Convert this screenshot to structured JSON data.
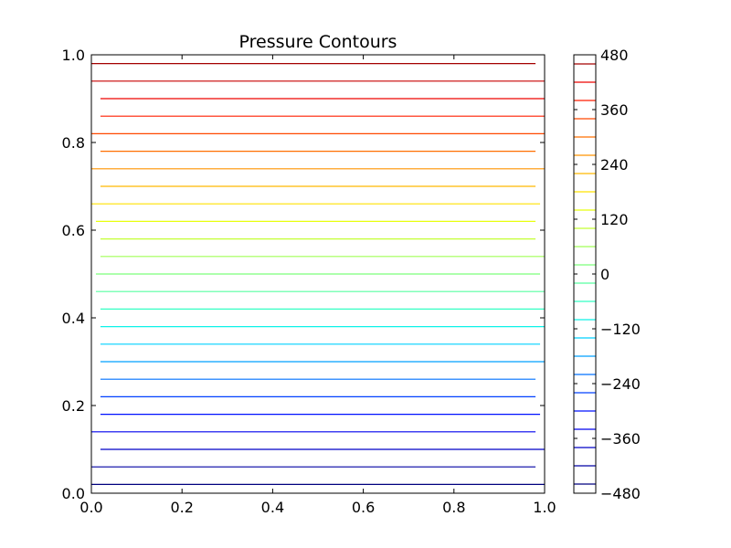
{
  "chart_data": {
    "type": "contour",
    "title": "Pressure Contours",
    "xlabel": "",
    "ylabel": "",
    "xlim": [
      0.0,
      1.0
    ],
    "ylim": [
      0.0,
      1.0
    ],
    "x_ticks": [
      "0.0",
      "0.2",
      "0.4",
      "0.6",
      "0.8",
      "1.0"
    ],
    "y_ticks": [
      "0.0",
      "0.2",
      "0.4",
      "0.6",
      "0.8",
      "1.0"
    ],
    "grid": false,
    "contour_orientation": "horizontal",
    "colormap": "jet",
    "levels": [
      {
        "value": -456,
        "y": 0.02,
        "x_extent": [
          0.0,
          1.0
        ],
        "color": "#00007f"
      },
      {
        "value": -432,
        "y": 0.06,
        "x_extent": [
          0.0,
          0.98
        ],
        "color": "#0000a4"
      },
      {
        "value": -408,
        "y": 0.1,
        "x_extent": [
          0.02,
          1.0
        ],
        "color": "#0000c8"
      },
      {
        "value": -384,
        "y": 0.14,
        "x_extent": [
          0.0,
          0.98
        ],
        "color": "#0000ed"
      },
      {
        "value": -360,
        "y": 0.18,
        "x_extent": [
          0.02,
          0.99
        ],
        "color": "#0010ff"
      },
      {
        "value": -336,
        "y": 0.22,
        "x_extent": [
          0.02,
          0.98
        ],
        "color": "#0040ff"
      },
      {
        "value": -312,
        "y": 0.26,
        "x_extent": [
          0.02,
          0.98
        ],
        "color": "#0070ff"
      },
      {
        "value": -288,
        "y": 0.3,
        "x_extent": [
          0.02,
          1.0
        ],
        "color": "#00a0ff"
      },
      {
        "value": -264,
        "y": 0.34,
        "x_extent": [
          0.02,
          0.99
        ],
        "color": "#00d0ff"
      },
      {
        "value": -240,
        "y": 0.38,
        "x_extent": [
          0.02,
          1.0
        ],
        "color": "#0ff2e8"
      },
      {
        "value": -216,
        "y": 0.42,
        "x_extent": [
          0.02,
          1.0
        ],
        "color": "#33ffc4"
      },
      {
        "value": -192,
        "y": 0.46,
        "x_extent": [
          0.01,
          1.0
        ],
        "color": "#57ffa0"
      },
      {
        "value": -168,
        "y": 0.5,
        "x_extent": [
          0.01,
          0.99
        ],
        "color": "#7cff7a"
      },
      {
        "value": -144,
        "y": 0.54,
        "x_extent": [
          0.02,
          1.0
        ],
        "color": "#a0ff57"
      },
      {
        "value": -120,
        "y": 0.58,
        "x_extent": [
          0.02,
          0.98
        ],
        "color": "#c4ff33"
      },
      {
        "value": -96,
        "y": 0.62,
        "x_extent": [
          0.01,
          0.98
        ],
        "color": "#e8ff0f"
      },
      {
        "value": -72,
        "y": 0.66,
        "x_extent": [
          0.0,
          0.99
        ],
        "color": "#ffe200"
      },
      {
        "value": -48,
        "y": 0.7,
        "x_extent": [
          0.02,
          0.98
        ],
        "color": "#ffb900"
      },
      {
        "value": -24,
        "y": 0.74,
        "x_extent": [
          0.0,
          1.0
        ],
        "color": "#ff9400"
      },
      {
        "value": 0,
        "y": 0.78,
        "x_extent": [
          0.02,
          0.98
        ],
        "color": "#ff6f00"
      },
      {
        "value": 24,
        "y": 0.82,
        "x_extent": [
          0.0,
          1.0
        ],
        "color": "#ff4800"
      },
      {
        "value": 48,
        "y": 0.86,
        "x_extent": [
          0.02,
          1.0
        ],
        "color": "#ff1f00"
      },
      {
        "value": 72,
        "y": 0.9,
        "x_extent": [
          0.02,
          1.0
        ],
        "color": "#ed0400"
      },
      {
        "value": 96,
        "y": 0.94,
        "x_extent": [
          0.0,
          1.0
        ],
        "color": "#c80000"
      },
      {
        "value": 120,
        "y": 0.98,
        "x_extent": [
          0.0,
          0.98
        ],
        "color": "#a40000"
      }
    ],
    "colorbar": {
      "range": [
        -480,
        480
      ],
      "tick_values": [
        480,
        360,
        240,
        120,
        0,
        -120,
        -240,
        -360,
        -480
      ],
      "tick_labels": [
        "480",
        "360",
        "240",
        "120",
        "0",
        "−120",
        "−240",
        "−360",
        "−480"
      ],
      "levels": [
        {
          "value": -460,
          "color": "#00007f"
        },
        {
          "value": -420,
          "color": "#0000a4"
        },
        {
          "value": -380,
          "color": "#0000c8"
        },
        {
          "value": -340,
          "color": "#0000ed"
        },
        {
          "value": -300,
          "color": "#0010ff"
        },
        {
          "value": -260,
          "color": "#0040ff"
        },
        {
          "value": -220,
          "color": "#0070ff"
        },
        {
          "value": -180,
          "color": "#00a0ff"
        },
        {
          "value": -140,
          "color": "#00d0ff"
        },
        {
          "value": -100,
          "color": "#0ff2e8"
        },
        {
          "value": -60,
          "color": "#33ffc4"
        },
        {
          "value": -20,
          "color": "#57ffa0"
        },
        {
          "value": 20,
          "color": "#7cff7a"
        },
        {
          "value": 60,
          "color": "#a0ff57"
        },
        {
          "value": 100,
          "color": "#c4ff33"
        },
        {
          "value": 140,
          "color": "#e8ff0f"
        },
        {
          "value": 180,
          "color": "#ffe200"
        },
        {
          "value": 220,
          "color": "#ffb900"
        },
        {
          "value": 260,
          "color": "#ff9400"
        },
        {
          "value": 300,
          "color": "#ff6f00"
        },
        {
          "value": 340,
          "color": "#ff4800"
        },
        {
          "value": 380,
          "color": "#ff1f00"
        },
        {
          "value": 420,
          "color": "#ed0400"
        },
        {
          "value": 460,
          "color": "#a40000"
        }
      ]
    }
  }
}
